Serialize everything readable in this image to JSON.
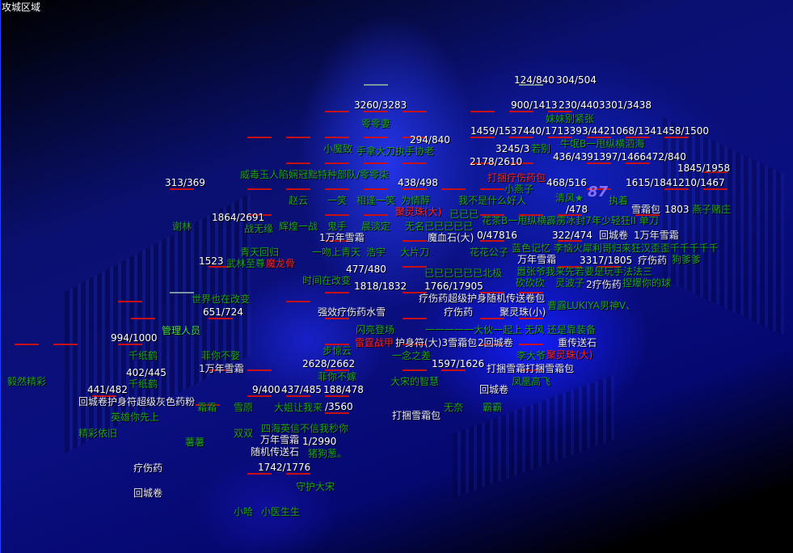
{
  "map": {
    "title": "攻城区域"
  },
  "colors": {
    "hp_text": "#ffffff",
    "player_name": "#1fa01f",
    "admin_name": "#3fe03f",
    "item_drop": "#e8e8ff",
    "rare_item": "#ff2020",
    "hp_bar": "#c81010"
  },
  "overlay_number": "87",
  "hp": [
    "124/840",
    "304/504",
    "3260/3283",
    "900/1413",
    "230/4403301/3438",
    "294/840",
    "1459/1537440/1713393/4421068/1341458/1500",
    "3245/3",
    "2178/2610",
    "436/4391397/1466472/840",
    "1845/1958",
    "313/369",
    "438/498",
    "468/516",
    "1615/1841210/1467",
    "1864/2691",
    "1803",
    "/478",
    "1523",
    "477/480",
    "1818/1832",
    "1766/17905",
    "651/724",
    "994/1000",
    "2628/2662",
    "1597/1626",
    "402/445",
    "441/482",
    "9/400",
    "437/485",
    "188/478",
    "/3560",
    "1/2990",
    "1742/1776",
    "3317/1805",
    "0/47816",
    "322/474"
  ],
  "names": [
    "零零妻",
    "小魔致",
    "手拿大刀执手协老",
    "威毒玉人陷娴冠黜特种部队/零零柒",
    "赵云",
    "一笑",
    "相逢一笑",
    "为情醉",
    "我不是什么好人",
    "谢林",
    "战无缘",
    "辉煌一战",
    "鬼手",
    "晨淡定",
    "无名已已已已已",
    "妹妹别紧张",
    "若别",
    "牛氓B一甩纵横泗海",
    "花茶B一甩纵横霹雳冰封7年少轻狂II 单刀",
    "小燕子",
    "清风★",
    "执着",
    "燕子赌庄",
    "蓝色记忆 李恼火犀利哥归来狂汉歪歪千千千千千",
    "青天回归",
    "一吻上青天",
    "浩宇",
    "大片刀",
    "武林至尊",
    "花花公子",
    "嚣张爷我来先若要是玩手法法三",
    "狗爹爹",
    "时间在改变",
    "已已已已已已北极",
    "砍砍砍",
    "灵波子",
    "捏爆你的球",
    "世界也在改变",
    "曹露LUKIYA男神V、",
    "闪亮登场",
    "一一一一一大伙一起上",
    "无风 还是靠装备",
    "千纸鹤",
    "菲你不娶",
    "步惊云",
    "一念之差",
    "李大爷",
    "毅然精彩",
    "千纸鹤",
    "菲你不嫁",
    "大宋的智慧",
    "凤凰高飞",
    "霜霜",
    "雪原",
    "大姐让我来",
    "无奈",
    "霸霸",
    "英雄你先上",
    "精彩依旧",
    "双双",
    "四海英信不信我秒你",
    "薯薯",
    "猪狗葱。",
    "守护大宋",
    "小哈",
    "小医生生",
    "已已已"
  ],
  "admin_name": "管理人员",
  "items": [
    "1万年雪霜",
    "魔血石(大)",
    "万年雪霜",
    "回城卷",
    "1万年雪霜",
    "雪霜包",
    "2疗伤药",
    "疗伤药",
    "疗伤药超级护身随机传送卷包",
    "强效疗伤药水雪",
    "疗伤药",
    "聚灵珠(小)",
    "护身符(大)3雪霜包",
    "2回城卷",
    "重传送石",
    "1万年雪霜",
    "打捆雪霜打捆雪霜包",
    "回城卷护身符超级灰色药粉",
    "回城卷",
    "万年雪霜",
    "打捆雪霜包",
    "随机传送石",
    "疗伤药",
    "回城卷"
  ],
  "rare_items": [
    "聚灵珠(大)",
    "打捆疗伤药包",
    "魔龙骨",
    "雷霆战甲",
    "聚灵珠(大)"
  ]
}
